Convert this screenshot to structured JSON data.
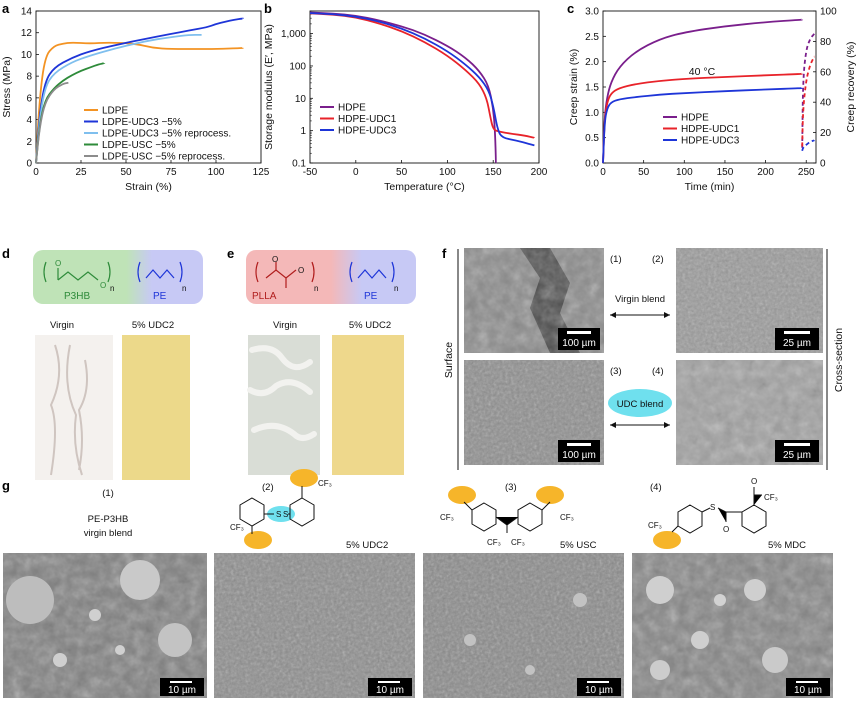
{
  "panel_labels": [
    "a",
    "b",
    "c",
    "d",
    "e",
    "f",
    "g"
  ],
  "chart_data": [
    {
      "id": "a",
      "type": "line",
      "xlabel": "Strain (%)",
      "ylabel": "Stress (MPa)",
      "xlim": [
        0,
        125
      ],
      "ylim": [
        0,
        14
      ],
      "xticks": [
        0,
        25,
        50,
        75,
        100,
        125
      ],
      "yticks": [
        0,
        2,
        4,
        6,
        8,
        10,
        12,
        14
      ],
      "legend_position": "bottom-right",
      "series": [
        {
          "name": "LDPE",
          "color": "#f39323",
          "x": [
            0,
            2,
            5,
            10,
            15,
            20,
            30,
            40,
            55,
            65,
            75,
            90,
            100,
            115
          ],
          "y": [
            0,
            6,
            9.8,
            10.8,
            11.0,
            11.1,
            11.0,
            11.1,
            11.0,
            10.6,
            10.5,
            10.5,
            10.5,
            10.6
          ]
        },
        {
          "name": "LDPE-UDC3 −5%",
          "color": "#1e35d8",
          "x": [
            0,
            2,
            5,
            10,
            20,
            30,
            45,
            60,
            75,
            85,
            95,
            100,
            105,
            110,
            115
          ],
          "y": [
            0,
            4.5,
            7.5,
            8.8,
            9.7,
            10.3,
            10.9,
            11.4,
            11.9,
            12.2,
            12.5,
            12.8,
            13.0,
            13.2,
            13.3
          ]
        },
        {
          "name": "LDPE-UDC3 −5% reprocess.",
          "color": "#7fbfee",
          "x": [
            0,
            2,
            5,
            10,
            20,
            30,
            45,
            60,
            75,
            85,
            92
          ],
          "y": [
            0,
            4.0,
            7.0,
            8.3,
            9.3,
            9.9,
            10.6,
            11.2,
            11.6,
            11.8,
            11.8
          ]
        },
        {
          "name": "LDPE-USC −5%",
          "color": "#2e8b3a",
          "x": [
            0,
            2,
            5,
            10,
            15,
            20,
            25,
            30,
            35,
            38
          ],
          "y": [
            0,
            3.5,
            5.8,
            6.9,
            7.6,
            8.1,
            8.5,
            8.8,
            9.1,
            9.2
          ]
        },
        {
          "name": "LDPE-USC −5% reprocess.",
          "color": "#8c8c8c",
          "x": [
            0,
            2,
            5,
            10,
            15,
            18
          ],
          "y": [
            0,
            3.3,
            5.6,
            6.8,
            7.3,
            7.4
          ]
        }
      ]
    },
    {
      "id": "b",
      "type": "line",
      "xlabel": "Temperature (°C)",
      "ylabel": "Storage modulus (E′, MPa)",
      "xlim": [
        -50,
        200
      ],
      "ylim": [
        0.1,
        5000
      ],
      "yscale": "log",
      "xticks": [
        -50,
        0,
        50,
        100,
        150,
        200
      ],
      "yticks": [
        0.1,
        1,
        10,
        100,
        1000
      ],
      "ytick_labels": [
        "0.1",
        "1",
        "10",
        "100",
        "1,000"
      ],
      "legend_position": "bottom-left",
      "series": [
        {
          "name": "HDPE",
          "color": "#7a1f8c",
          "x": [
            -50,
            -25,
            0,
            25,
            50,
            75,
            100,
            120,
            135,
            145,
            150,
            152,
            153
          ],
          "y": [
            4500,
            4200,
            3600,
            2600,
            1700,
            950,
            420,
            180,
            70,
            25,
            5,
            1,
            0.1
          ]
        },
        {
          "name": "HDPE-UDC1",
          "color": "#e8232a",
          "x": [
            -50,
            -25,
            0,
            25,
            50,
            75,
            100,
            120,
            135,
            143,
            147,
            150,
            155,
            170,
            185,
            195
          ],
          "y": [
            4200,
            3900,
            3200,
            2100,
            1200,
            560,
            210,
            75,
            28,
            10,
            2.5,
            1.1,
            0.95,
            0.8,
            0.7,
            0.6
          ]
        },
        {
          "name": "HDPE-UDC3",
          "color": "#1e35d8",
          "x": [
            -50,
            -25,
            0,
            25,
            50,
            75,
            100,
            120,
            135,
            145,
            150,
            155,
            160,
            175,
            190,
            195
          ],
          "y": [
            4300,
            4000,
            3400,
            2400,
            1450,
            720,
            290,
            110,
            45,
            18,
            6,
            1.0,
            0.6,
            0.5,
            0.38,
            0.35
          ]
        }
      ]
    },
    {
      "id": "c",
      "type": "line",
      "xlabel": "Time (min)",
      "ylabel": "Creep strain (%)",
      "ylabel_right": "Creep recovery (%)",
      "xlim": [
        0,
        262
      ],
      "ylim": [
        0,
        3.0
      ],
      "ylim_right": [
        0,
        100
      ],
      "xticks": [
        0,
        50,
        100,
        150,
        200,
        250
      ],
      "yticks": [
        0,
        0.5,
        1.0,
        1.5,
        2.0,
        2.5,
        3.0
      ],
      "yticks_right": [
        0,
        20,
        40,
        60,
        80,
        100
      ],
      "annotation": "40 °C",
      "legend_position": "bottom-center",
      "series": [
        {
          "name": "HDPE",
          "color": "#7a1f8c",
          "x": [
            0,
            2,
            5,
            10,
            20,
            40,
            70,
            100,
            150,
            200,
            245
          ],
          "y": [
            0,
            0.9,
            1.3,
            1.6,
            1.9,
            2.2,
            2.45,
            2.58,
            2.7,
            2.78,
            2.83
          ],
          "recovery_x": [
            245,
            246,
            250,
            255,
            260
          ],
          "recovery_y": [
            10,
            55,
            75,
            82,
            85
          ]
        },
        {
          "name": "HDPE-UDC1",
          "color": "#e8232a",
          "x": [
            0,
            2,
            5,
            10,
            20,
            40,
            70,
            100,
            150,
            200,
            245
          ],
          "y": [
            0,
            0.85,
            1.2,
            1.38,
            1.48,
            1.56,
            1.62,
            1.66,
            1.7,
            1.73,
            1.76
          ],
          "recovery_x": [
            245,
            246,
            250,
            255,
            260
          ],
          "recovery_y": [
            11,
            35,
            55,
            65,
            70
          ]
        },
        {
          "name": "HDPE-UDC3",
          "color": "#1e35d8",
          "x": [
            0,
            2,
            5,
            10,
            20,
            40,
            70,
            100,
            150,
            200,
            245
          ],
          "y": [
            0,
            0.8,
            1.08,
            1.2,
            1.26,
            1.3,
            1.35,
            1.38,
            1.42,
            1.45,
            1.48
          ],
          "recovery_x": [
            245,
            246,
            250,
            255,
            260
          ],
          "recovery_y": [
            8,
            10,
            12,
            14,
            15
          ]
        }
      ]
    }
  ],
  "panel_d": {
    "block_left": "P3HB",
    "block_right": "PE",
    "photo_left": "Virgin",
    "photo_right": "5% UDC2",
    "subscript": "n"
  },
  "panel_e": {
    "block_left": "PLLA",
    "block_right": "PE",
    "photo_left": "Virgin",
    "photo_right": "5% UDC2",
    "subscript": "n"
  },
  "panel_f": {
    "left_side": "Surface",
    "right_side": "Cross-section",
    "label_top": "Virgin blend",
    "label_bottom": "UDC blend",
    "images": [
      {
        "num": "(1)",
        "scale": "100 µm"
      },
      {
        "num": "(2)",
        "scale": "25 µm"
      },
      {
        "num": "(3)",
        "scale": "100 µm"
      },
      {
        "num": "(4)",
        "scale": "25 µm"
      }
    ]
  },
  "panel_g": {
    "items": [
      {
        "num": "(1)",
        "line1": "PE-P3HB",
        "line2": "virgin blend",
        "label": "",
        "scale": "10 µm"
      },
      {
        "num": "(2)",
        "line1": "",
        "line2": "",
        "label": "5% UDC2",
        "scale": "10 µm"
      },
      {
        "num": "(3)",
        "line1": "",
        "line2": "",
        "label": "5% USC",
        "scale": "10 µm"
      },
      {
        "num": "(4)",
        "line1": "",
        "line2": "",
        "label": "5% MDC",
        "scale": "10 µm"
      }
    ],
    "chem_cf3": "CF₃",
    "chem_s": "S",
    "chem_o": "O"
  },
  "colors": {
    "p3hb_block": "#bfe3b7",
    "pe_block": "#c7c9f5",
    "plla_block": "#f4b8b8",
    "diazirine_highlight": "#f6b52a",
    "disulfide_highlight": "#6fe0ee",
    "sem_dark": "#6d6d6d",
    "sem_light": "#b9b9b9"
  }
}
